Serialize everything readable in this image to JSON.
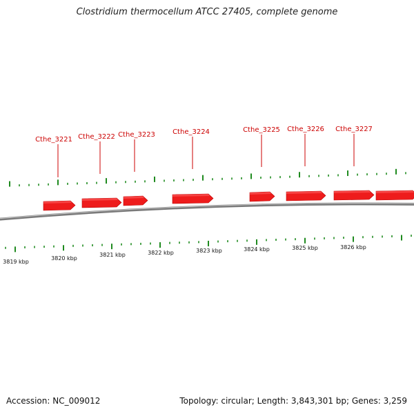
{
  "title": "Clostridium thermocellum ATCC 27405, complete genome",
  "footer": {
    "accession": "Accession: NC_009012",
    "summary": "Topology: circular; Length: 3,843,301 bp; Genes: 3,259"
  },
  "colors": {
    "gene": "#ee1c1c",
    "gene_label": "#cc0000",
    "tick": "#1e8a1e",
    "backbone": "#7a7a7a"
  },
  "genes": [
    {
      "label": "Cthe_3221"
    },
    {
      "label": "Cthe_3222"
    },
    {
      "label": "Cthe_3223"
    },
    {
      "label": "Cthe_3224"
    },
    {
      "label": "Cthe_3225"
    },
    {
      "label": "Cthe_3226"
    },
    {
      "label": "Cthe_3227"
    },
    {
      "label": ""
    }
  ],
  "scale_labels": [
    "3819 kbp",
    "3820 kbp",
    "3821 kbp",
    "3822 kbp",
    "3823 kbp",
    "3824 kbp",
    "3825 kbp",
    "3826 kbp"
  ]
}
